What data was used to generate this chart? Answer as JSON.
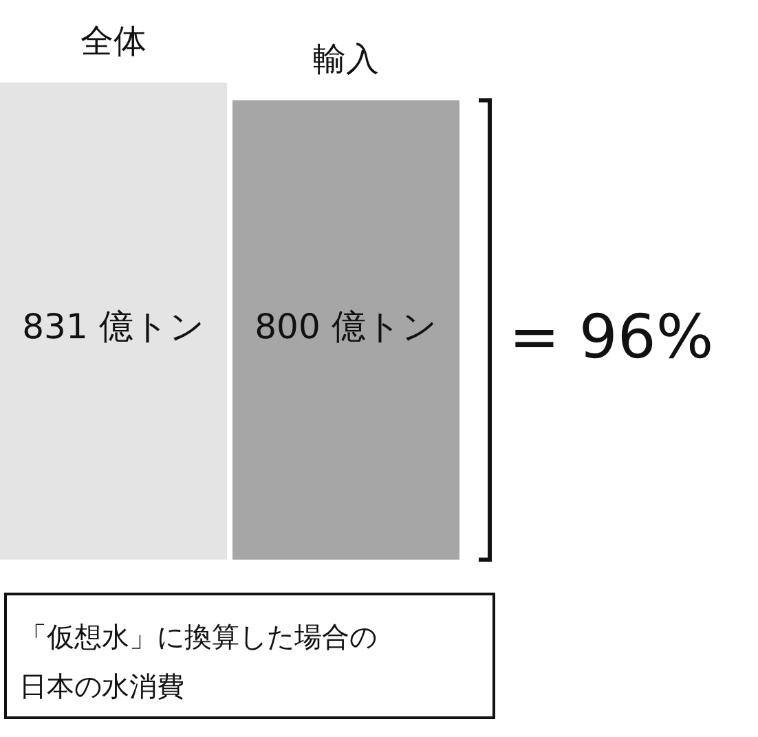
{
  "chart_data": {
    "type": "bar",
    "categories": [
      "全体",
      "輸入"
    ],
    "values": [
      831,
      800
    ],
    "colors": [
      "#e4e4e4",
      "#a6a6a6"
    ],
    "value_labels": [
      "831 億トン",
      "800 億トン"
    ],
    "annotations": [
      "= 96%",
      "「仮想水」に換算した場合の日本の水消費"
    ]
  }
}
